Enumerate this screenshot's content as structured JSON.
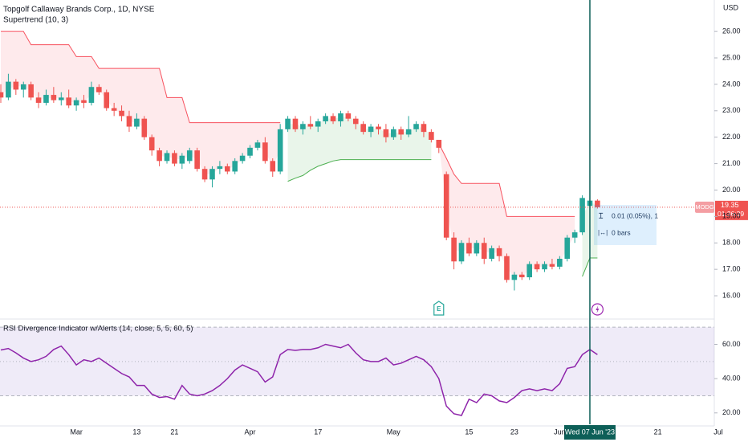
{
  "header": {
    "title": "Topgolf Callaway Brands Corp., 1D, NYSE",
    "indicator": "Supertrend (10, 3)",
    "currency": "USD",
    "symbol": "MODG",
    "countdown": "01:36:39",
    "crosshair_label": "Wed 07 Jun '23",
    "measure": [
      "0.01 (0.05%), 1",
      "0 bars"
    ],
    "earnings_marker": "E"
  },
  "chart_data": [
    {
      "type": "candlestick",
      "up_color": "#26a69a",
      "down_color": "#ef5350",
      "grid": false,
      "categories": [
        null,
        null,
        null,
        null,
        null,
        null,
        null,
        null,
        null,
        null,
        "Mar",
        null,
        null,
        null,
        null,
        null,
        null,
        null,
        "13",
        null,
        null,
        null,
        null,
        "21",
        null,
        null,
        null,
        null,
        null,
        null,
        null,
        null,
        null,
        "Apr",
        null,
        null,
        null,
        null,
        null,
        null,
        null,
        null,
        "17",
        null,
        null,
        null,
        null,
        null,
        null,
        null,
        null,
        null,
        "May",
        null,
        null,
        null,
        null,
        null,
        null,
        null,
        null,
        null,
        "15",
        null,
        null,
        null,
        null,
        null,
        "23",
        null,
        null,
        null,
        null,
        null,
        "Jun",
        null,
        null,
        null,
        null,
        null,
        null,
        null,
        null,
        null,
        null,
        null,
        null,
        "21",
        null,
        null,
        null,
        null,
        null,
        null,
        null,
        "Jul"
      ],
      "open": [
        23.7,
        23.5,
        24.1,
        23.8,
        24.0,
        23.5,
        23.3,
        23.6,
        23.4,
        23.5,
        23.2,
        23.4,
        23.3,
        23.9,
        23.7,
        23.1,
        23.0,
        22.8,
        22.4,
        22.7,
        22.0,
        21.5,
        21.1,
        21.4,
        21.0,
        21.1,
        21.5,
        20.8,
        20.4,
        20.8,
        20.9,
        20.7,
        21.1,
        21.3,
        21.6,
        21.8,
        21.1,
        20.7,
        22.3,
        22.7,
        22.3,
        22.5,
        22.4,
        22.6,
        22.8,
        22.6,
        22.9,
        22.7,
        22.5,
        22.2,
        22.4,
        22.3,
        22.0,
        22.3,
        22.1,
        22.3,
        22.5,
        22.2,
        21.9,
        20.6,
        18.2,
        17.3,
        18.0,
        17.6,
        18.0,
        17.4,
        17.8,
        17.5,
        16.6,
        16.8,
        16.7,
        17.2,
        17.0,
        17.2,
        17.1,
        17.4,
        18.2,
        18.4,
        19.4,
        19.6,
        null,
        null,
        null,
        null,
        null,
        null,
        null,
        null,
        null,
        null,
        null,
        null,
        null,
        null,
        null,
        null
      ],
      "high": [
        24.0,
        24.4,
        24.2,
        24.1,
        24.1,
        23.7,
        23.8,
        23.9,
        23.7,
        23.8,
        23.5,
        23.6,
        24.1,
        24.0,
        23.8,
        23.3,
        23.2,
        23.0,
        22.9,
        22.8,
        22.1,
        21.6,
        21.5,
        21.5,
        21.4,
        21.6,
        21.6,
        20.9,
        20.9,
        21.1,
        21.0,
        21.2,
        21.4,
        21.7,
        21.9,
        22.0,
        21.2,
        22.5,
        22.8,
        22.8,
        22.6,
        22.8,
        22.7,
        22.9,
        22.9,
        23.0,
        23.0,
        22.8,
        22.6,
        22.5,
        22.5,
        22.5,
        22.4,
        22.4,
        22.8,
        22.6,
        22.6,
        22.3,
        21.9,
        20.7,
        18.4,
        18.1,
        18.2,
        18.1,
        18.2,
        17.9,
        17.9,
        17.6,
        16.9,
        16.9,
        17.3,
        17.3,
        17.3,
        17.4,
        17.5,
        18.3,
        18.5,
        19.8,
        19.7,
        19.65,
        null,
        null,
        null,
        null,
        null,
        null,
        null,
        null,
        null,
        null,
        null,
        null,
        null,
        null,
        null,
        null
      ],
      "low": [
        23.3,
        23.4,
        23.6,
        23.5,
        23.4,
        23.1,
        23.2,
        23.3,
        23.2,
        23.1,
        23.0,
        23.1,
        23.2,
        23.6,
        23.0,
        22.8,
        22.6,
        22.2,
        22.3,
        21.9,
        21.3,
        20.9,
        21.0,
        20.9,
        20.8,
        21.0,
        20.7,
        20.3,
        20.1,
        20.6,
        20.6,
        20.6,
        21.0,
        21.2,
        21.5,
        21.0,
        20.5,
        20.6,
        22.2,
        22.2,
        22.1,
        22.3,
        22.2,
        22.5,
        22.5,
        22.4,
        22.6,
        22.3,
        22.1,
        22.0,
        22.1,
        21.8,
        21.9,
        21.9,
        22.0,
        22.2,
        22.0,
        21.8,
        21.4,
        18.1,
        17.0,
        17.2,
        17.5,
        17.5,
        17.2,
        17.3,
        17.3,
        16.5,
        16.2,
        16.6,
        16.6,
        16.9,
        16.9,
        17.0,
        17.0,
        17.3,
        18.0,
        18.3,
        19.3,
        19.3,
        null,
        null,
        null,
        null,
        null,
        null,
        null,
        null,
        null,
        null,
        null,
        null,
        null,
        null,
        null,
        null
      ],
      "close": [
        23.5,
        24.1,
        23.8,
        24.0,
        23.5,
        23.3,
        23.6,
        23.4,
        23.5,
        23.2,
        23.4,
        23.3,
        23.9,
        23.7,
        23.1,
        23.0,
        22.8,
        22.4,
        22.7,
        22.0,
        21.5,
        21.1,
        21.4,
        21.0,
        21.3,
        21.5,
        20.8,
        20.4,
        20.8,
        20.9,
        20.7,
        21.1,
        21.3,
        21.6,
        21.8,
        21.1,
        20.7,
        22.3,
        22.7,
        22.3,
        22.5,
        22.4,
        22.6,
        22.8,
        22.6,
        22.9,
        22.7,
        22.5,
        22.2,
        22.4,
        22.3,
        22.0,
        22.3,
        22.1,
        22.3,
        22.5,
        22.2,
        21.9,
        21.6,
        18.2,
        17.3,
        18.0,
        17.6,
        18.0,
        17.4,
        17.8,
        17.5,
        16.6,
        16.8,
        16.7,
        17.2,
        17.0,
        17.2,
        17.1,
        17.4,
        18.2,
        18.4,
        19.7,
        19.6,
        19.35,
        null,
        null,
        null,
        null,
        null,
        null,
        null,
        null,
        null,
        null,
        null,
        null,
        null,
        null,
        null,
        null
      ],
      "series": [
        {
          "color": "#f7525f",
          "fill": "rgba(247,82,95,0.12)",
          "values": [
            26.0,
            26.0,
            26.0,
            26.0,
            25.5,
            25.5,
            25.5,
            25.5,
            25.5,
            25.5,
            25.05,
            25.05,
            25.05,
            24.6,
            24.6,
            24.6,
            24.6,
            24.6,
            24.6,
            24.6,
            24.6,
            24.6,
            23.5,
            23.5,
            23.5,
            22.55,
            22.55,
            22.55,
            22.55,
            22.55,
            22.55,
            22.55,
            22.55,
            22.55,
            22.55,
            22.55,
            22.55,
            22.55,
            null,
            null,
            null,
            null,
            null,
            null,
            null,
            null,
            null,
            null,
            null,
            null,
            null,
            null,
            null,
            null,
            null,
            null,
            null,
            null,
            21.76,
            21.2,
            20.6,
            20.25,
            20.25,
            20.25,
            20.25,
            20.25,
            20.25,
            19.0,
            19.0,
            19.0,
            19.0,
            19.0,
            19.0,
            19.0,
            19.0,
            19.0,
            19.0,
            null,
            null,
            null,
            null,
            null,
            null,
            null,
            null,
            null,
            null,
            null,
            null,
            null,
            null,
            null,
            null,
            null,
            null,
            null
          ]
        },
        {
          "color": "#4caf50",
          "fill": "rgba(76,175,80,0.12)",
          "values": [
            null,
            null,
            null,
            null,
            null,
            null,
            null,
            null,
            null,
            null,
            null,
            null,
            null,
            null,
            null,
            null,
            null,
            null,
            null,
            null,
            null,
            null,
            null,
            null,
            null,
            null,
            null,
            null,
            null,
            null,
            null,
            null,
            null,
            null,
            null,
            null,
            null,
            null,
            20.33,
            20.45,
            20.55,
            20.75,
            20.9,
            21.0,
            21.1,
            21.15,
            21.15,
            21.15,
            21.15,
            21.15,
            21.15,
            21.15,
            21.15,
            21.15,
            21.15,
            21.15,
            21.15,
            21.15,
            null,
            null,
            null,
            null,
            null,
            null,
            null,
            null,
            null,
            null,
            null,
            null,
            null,
            null,
            null,
            null,
            null,
            null,
            null,
            16.73,
            17.43,
            17.43,
            null,
            null,
            null,
            null,
            null,
            null,
            null,
            null,
            null,
            null,
            null,
            null,
            null,
            null,
            null,
            null
          ]
        }
      ],
      "last_price": 19.35,
      "ylim": [
        15.15,
        27.19
      ],
      "yticks": [
        {
          "value": 16,
          "label": "16.00"
        },
        {
          "value": 17,
          "label": "17.00"
        },
        {
          "value": 18,
          "label": "18.00"
        },
        {
          "value": 19,
          "label": "19.00"
        },
        {
          "value": 20,
          "label": "20.00"
        },
        {
          "value": 21,
          "label": "21.00"
        },
        {
          "value": 22,
          "label": "22.00"
        },
        {
          "value": 23,
          "label": "23.00"
        },
        {
          "value": 24,
          "label": "24.00"
        },
        {
          "value": 25,
          "label": "25.00"
        },
        {
          "value": 26,
          "label": "26.00"
        }
      ]
    },
    {
      "type": "line",
      "title": "RSI Divergence Indicator w/Alerts (14, close, 5, 5, 60, 5)",
      "color": "#8e24aa",
      "band_color": "rgba(126,87,194,0.12)",
      "values": [
        56.7,
        57.6,
        55,
        52,
        50,
        51,
        53,
        57,
        59,
        54,
        48,
        51,
        50,
        52,
        49,
        46,
        43,
        41,
        36,
        36,
        31,
        29,
        29.5,
        28,
        36,
        31,
        30,
        31,
        33,
        36,
        40,
        45,
        48,
        46,
        44,
        38,
        41,
        54,
        57,
        56.5,
        57,
        57,
        58,
        60,
        59,
        58,
        60,
        55,
        51,
        50,
        50,
        52,
        48,
        49,
        51,
        53,
        51,
        47,
        40,
        24,
        19.5,
        18.5,
        28,
        26,
        31,
        30,
        27,
        26,
        29,
        33,
        34,
        33,
        34,
        33,
        37,
        46,
        47,
        54,
        57,
        54,
        null,
        null,
        null,
        null,
        null,
        null,
        null,
        null,
        null,
        null,
        null,
        null,
        null,
        null,
        null,
        null
      ],
      "levels": [
        70,
        50,
        30
      ],
      "ylim": [
        12.4,
        74.3
      ],
      "yticks": [
        {
          "value": 20,
          "label": "20.00"
        },
        {
          "value": 40,
          "label": "40.00"
        },
        {
          "value": 60,
          "label": "60.00"
        }
      ]
    }
  ]
}
